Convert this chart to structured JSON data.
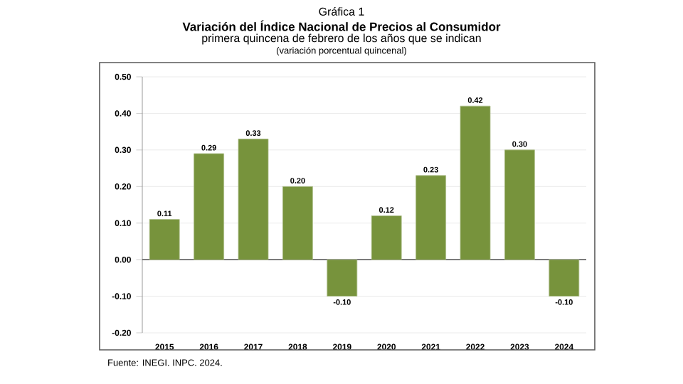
{
  "chart_data": {
    "type": "bar",
    "title": "Variación del Índice Nacional de Precios al Consumidor",
    "subtitle": "primera quincena de febrero de los años que se indican",
    "annotations": [
      "Gráfica 1",
      "(variación porcentual quincenal)",
      "Fuente: INEGI. INPC. 2024."
    ],
    "categories": [
      "2015",
      "2016",
      "2017",
      "2018",
      "2019",
      "2020",
      "2021",
      "2022",
      "2023",
      "2024"
    ],
    "values": [
      0.11,
      0.29,
      0.33,
      0.2,
      -0.1,
      0.12,
      0.23,
      0.42,
      0.3,
      -0.1
    ],
    "value_labels": [
      "0.11",
      "0.29",
      "0.33",
      "0.20",
      "-0.10",
      "0.12",
      "0.23",
      "0.42",
      "0.30",
      "-0.10"
    ],
    "color": "#77933c",
    "ylim": [
      -0.2,
      0.5
    ],
    "yticks": [
      {
        "value": -0.2,
        "label": "-0.20"
      },
      {
        "value": -0.1,
        "label": "-0.10"
      },
      {
        "value": 0,
        "label": "0.00"
      },
      {
        "value": 0.1,
        "label": "0.10"
      },
      {
        "value": 0.2,
        "label": "0.20"
      },
      {
        "value": 0.3,
        "label": "0.30"
      },
      {
        "value": 0.4,
        "label": "0.40"
      },
      {
        "value": 0.5,
        "label": "0.50"
      }
    ],
    "grid": "y"
  }
}
